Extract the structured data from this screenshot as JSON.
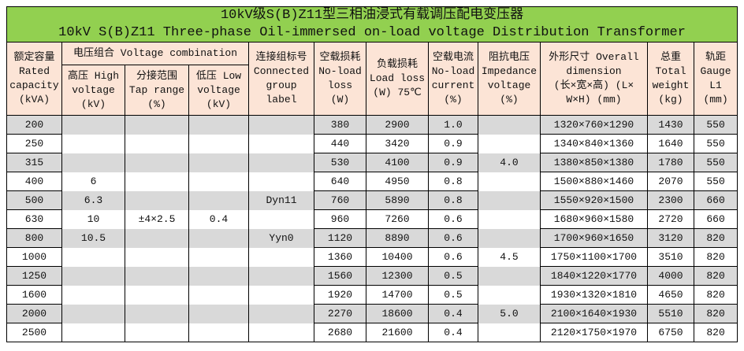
{
  "title": {
    "zh": "10kV级S(B)Z11型三相油浸式有载调压配电变压器",
    "en": "10kV S(B)Z11 Three-phase Oil-immersed on-load voltage Distribution Transformer"
  },
  "headers": {
    "capacity": [
      "额定容量",
      "Rated",
      "capacity",
      "(kVA)"
    ],
    "voltage_combination": "电压组合 Voltage combination",
    "high_voltage": [
      "高压 High",
      "voltage",
      "(kV)"
    ],
    "tap_range": [
      "分接范围",
      "Tap range",
      "(%)"
    ],
    "low_voltage": [
      "低压 Low",
      "voltage",
      "(kV)"
    ],
    "group": [
      "连接组标号",
      "Connected",
      "group",
      "label"
    ],
    "noload_loss": [
      "空载损耗",
      "No-load",
      "loss",
      "(W)"
    ],
    "load_loss": [
      "负载损耗",
      "Load loss",
      "(W) 75℃"
    ],
    "noload_current": [
      "空载电流",
      "No-load",
      "current",
      "(%)"
    ],
    "impedance": [
      "阻抗电压",
      "Impedance",
      "voltage",
      "(%)"
    ],
    "dimension": [
      "外形尺寸 Overall",
      "dimension",
      "(长×宽×高) (L×",
      "W×H) (mm)"
    ],
    "weight": [
      "总重",
      "Total",
      "weight",
      "(kg)"
    ],
    "gauge": [
      "轨距",
      "Gauge",
      "L1",
      "(mm)"
    ]
  },
  "rows": [
    [
      "200",
      "",
      "",
      "",
      "",
      "380",
      "2900",
      "1.0",
      "",
      "1320×760×1290",
      "1430",
      "550"
    ],
    [
      "250",
      "",
      "",
      "",
      "",
      "440",
      "3420",
      "0.9",
      "",
      "1340×840×1360",
      "1640",
      "550"
    ],
    [
      "315",
      "",
      "",
      "",
      "",
      "530",
      "4100",
      "0.9",
      "4.0",
      "1380×850×1380",
      "1780",
      "550"
    ],
    [
      "400",
      "6",
      "",
      "",
      "",
      "640",
      "4950",
      "0.8",
      "",
      "1500×880×1460",
      "2070",
      "550"
    ],
    [
      "500",
      "6.3",
      "",
      "",
      "Dyn11",
      "760",
      "5890",
      "0.8",
      "",
      "1550×920×1500",
      "2300",
      "660"
    ],
    [
      "630",
      "10",
      "±4×2.5",
      "0.4",
      "",
      "960",
      "7260",
      "0.6",
      "",
      "1680×960×1580",
      "2720",
      "660"
    ],
    [
      "800",
      "10.5",
      "",
      "",
      "Yyn0",
      "1120",
      "8890",
      "0.6",
      "",
      "1700×960×1650",
      "3120",
      "820"
    ],
    [
      "1000",
      "",
      "",
      "",
      "",
      "1360",
      "10400",
      "0.6",
      "4.5",
      "1750×1100×1700",
      "3510",
      "820"
    ],
    [
      "1250",
      "",
      "",
      "",
      "",
      "1560",
      "12300",
      "0.5",
      "",
      "1840×1220×1770",
      "4000",
      "820"
    ],
    [
      "1600",
      "",
      "",
      "",
      "",
      "1920",
      "14700",
      "0.5",
      "",
      "1930×1320×1810",
      "4650",
      "820"
    ],
    [
      "2000",
      "",
      "",
      "",
      "",
      "2270",
      "18600",
      "0.4",
      "5.0",
      "2100×1640×1930",
      "5510",
      "820"
    ],
    [
      "2500",
      "",
      "",
      "",
      "",
      "2680",
      "21600",
      "0.4",
      "",
      "2120×1750×1970",
      "6750",
      "820"
    ]
  ],
  "colors": {
    "title_bg": "#92d050",
    "header_bg": "#fce4d6",
    "stripe": "#d9d9d9"
  }
}
